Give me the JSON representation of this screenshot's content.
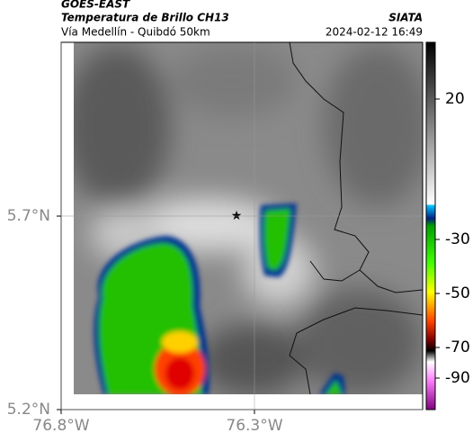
{
  "header": {
    "satellite": "GOES-EAST",
    "product": "Temperatura de Brillo CH13",
    "org": "SIATA",
    "region": "Vía Medellín - Quibdó 50km",
    "datetime": "2024-02-12 16:49"
  },
  "map": {
    "xlim": [
      -76.8,
      -75.865
    ],
    "ylim": [
      5.2,
      6.149
    ],
    "xticks": [
      {
        "value": -76.8,
        "label": "76.8°W"
      },
      {
        "value": -76.3,
        "label": "76.3°W"
      }
    ],
    "yticks": [
      {
        "value": 5.2,
        "label": "5.2°N"
      },
      {
        "value": 5.7,
        "label": "5.7°N"
      }
    ],
    "grid": true
  },
  "colorbar": {
    "ticks": [
      20,
      -30,
      -50,
      -70,
      -90
    ]
  }
}
